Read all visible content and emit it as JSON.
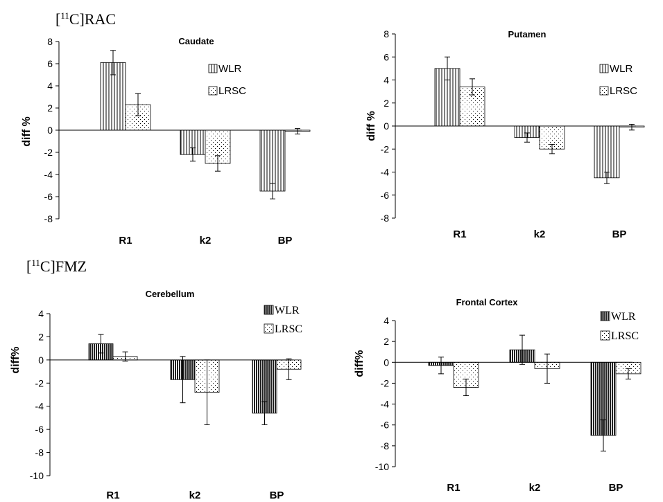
{
  "sections": {
    "rac": {
      "sup": "11",
      "rest": "C]RAC"
    },
    "fmz": {
      "sup": "11",
      "rest": "C]FMZ"
    }
  },
  "chart_data": [
    {
      "type": "bar",
      "title": "Caudate",
      "ylabel": "diff %",
      "categories": [
        "R1",
        "k2",
        "BP"
      ],
      "ylim": [
        -8,
        8
      ],
      "yticks": [
        -8,
        -6,
        -4,
        -2,
        0,
        2,
        4,
        6,
        8
      ],
      "series": [
        {
          "name": "WLR",
          "pattern": "vertical-lines",
          "values": [
            6.1,
            -2.2,
            -5.5
          ],
          "errors": [
            1.1,
            0.6,
            0.7
          ]
        },
        {
          "name": "LRSC",
          "pattern": "dots",
          "values": [
            2.3,
            -3.0,
            -0.1
          ],
          "errors": [
            1.0,
            0.7,
            0.25
          ]
        }
      ]
    },
    {
      "type": "bar",
      "title": "Putamen",
      "ylabel": "diff %",
      "categories": [
        "R1",
        "k2",
        "BP"
      ],
      "ylim": [
        -8,
        8
      ],
      "yticks": [
        -8,
        -6,
        -4,
        -2,
        0,
        2,
        4,
        6,
        8
      ],
      "series": [
        {
          "name": "WLR",
          "pattern": "vertical-lines",
          "values": [
            5.0,
            -1.0,
            -4.5
          ],
          "errors": [
            1.0,
            0.4,
            0.5
          ]
        },
        {
          "name": "LRSC",
          "pattern": "dots",
          "values": [
            3.4,
            -2.0,
            -0.1
          ],
          "errors": [
            0.7,
            0.4,
            0.25
          ]
        }
      ]
    },
    {
      "type": "bar",
      "title": "Cerebellum",
      "ylabel": "diff%",
      "categories": [
        "R1",
        "k2",
        "BP"
      ],
      "ylim": [
        -10,
        4
      ],
      "yticks": [
        -10,
        -8,
        -6,
        -4,
        -2,
        0,
        2,
        4
      ],
      "series": [
        {
          "name": "WLR",
          "pattern": "dense-vertical-lines",
          "values": [
            1.4,
            -1.7,
            -4.6
          ],
          "errors": [
            0.8,
            2.0,
            1.0
          ]
        },
        {
          "name": "LRSC",
          "pattern": "dots",
          "values": [
            0.3,
            -2.8,
            -0.8
          ],
          "errors": [
            0.4,
            2.8,
            0.9
          ]
        }
      ]
    },
    {
      "type": "bar",
      "title": "Frontal Cortex",
      "ylabel": "diff%",
      "categories": [
        "R1",
        "k2",
        "BP"
      ],
      "ylim": [
        -10,
        4
      ],
      "yticks": [
        -10,
        -8,
        -6,
        -4,
        -2,
        0,
        2,
        4
      ],
      "series": [
        {
          "name": "WLR",
          "pattern": "dense-vertical-lines",
          "values": [
            -0.3,
            1.2,
            -7.0
          ],
          "errors": [
            0.8,
            1.4,
            1.5
          ]
        },
        {
          "name": "LRSC",
          "pattern": "dots",
          "values": [
            -2.4,
            -0.6,
            -1.1
          ],
          "errors": [
            0.8,
            1.4,
            0.5
          ]
        }
      ]
    }
  ]
}
